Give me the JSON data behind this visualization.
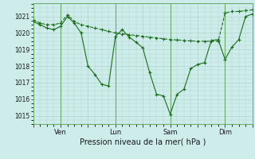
{
  "xlabel": "Pression niveau de la mer( hPa )",
  "background_color": "#ceecea",
  "line_color": "#1a6e1a",
  "grid_color": "#aed4d0",
  "sep_color": "#6aaa6a",
  "xlim": [
    0,
    96
  ],
  "ylim": [
    1014.5,
    1021.8
  ],
  "yticks": [
    1015,
    1016,
    1017,
    1018,
    1019,
    1020,
    1021
  ],
  "day_ticks": [
    {
      "x": 12,
      "label": "Ven"
    },
    {
      "x": 36,
      "label": "Lun"
    },
    {
      "x": 60,
      "label": "Sam"
    },
    {
      "x": 84,
      "label": "Dim"
    }
  ],
  "series1_x": [
    0,
    3,
    6,
    9,
    12,
    15,
    18,
    21,
    24,
    27,
    30,
    33,
    36,
    39,
    42,
    45,
    48,
    51,
    54,
    57,
    60,
    63,
    66,
    69,
    72,
    75,
    78,
    81,
    84,
    87,
    90,
    93,
    96
  ],
  "series1_y": [
    1020.8,
    1020.6,
    1020.5,
    1020.5,
    1020.6,
    1021.1,
    1020.7,
    1020.5,
    1020.4,
    1020.3,
    1020.2,
    1020.1,
    1020.0,
    1019.95,
    1019.9,
    1019.85,
    1019.8,
    1019.75,
    1019.7,
    1019.65,
    1019.6,
    1019.58,
    1019.55,
    1019.52,
    1019.5,
    1019.5,
    1019.5,
    1019.5,
    1021.2,
    1021.3,
    1021.3,
    1021.35,
    1021.4
  ],
  "series2_x": [
    0,
    3,
    6,
    9,
    12,
    15,
    18,
    21,
    24,
    27,
    30,
    33,
    36,
    39,
    42,
    45,
    48,
    51,
    54,
    57,
    60,
    63,
    66,
    69,
    72,
    75,
    78,
    81,
    84,
    87,
    90,
    93,
    96
  ],
  "series2_y": [
    1020.7,
    1020.5,
    1020.3,
    1020.2,
    1020.4,
    1021.0,
    1020.6,
    1020.0,
    1018.0,
    1017.5,
    1016.9,
    1016.8,
    1019.8,
    1020.2,
    1019.75,
    1019.45,
    1019.1,
    1017.6,
    1016.3,
    1016.2,
    1015.1,
    1016.3,
    1016.6,
    1017.85,
    1018.1,
    1018.2,
    1019.55,
    1019.6,
    1018.4,
    1019.15,
    1019.6,
    1021.0,
    1021.15
  ]
}
